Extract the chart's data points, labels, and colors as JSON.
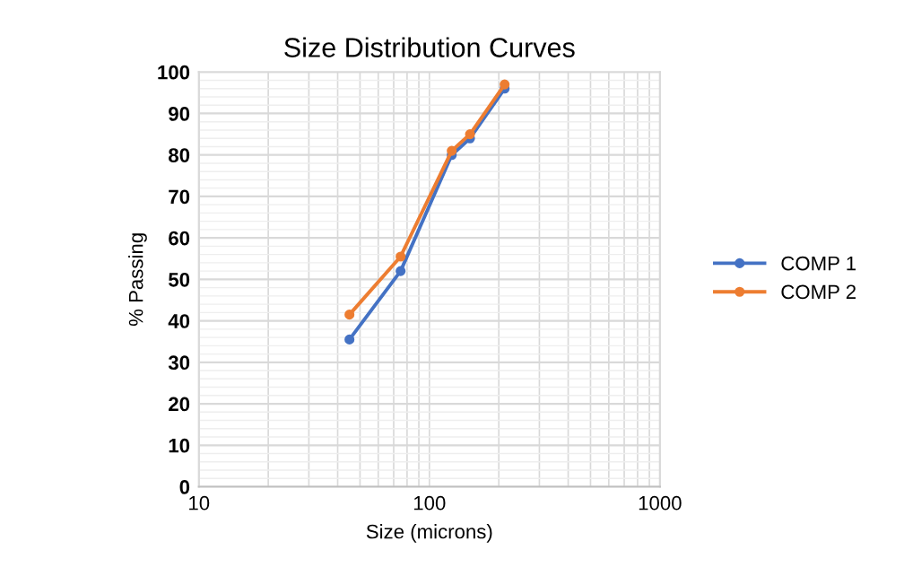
{
  "chart_data": {
    "type": "line",
    "title": "Size Distribution Curves",
    "xlabel": "Size (microns)",
    "ylabel": "% Passing",
    "log": "x",
    "xlim": [
      10,
      1000
    ],
    "xticks": [
      10,
      100,
      1000
    ],
    "ylim": [
      0,
      100
    ],
    "yticks": [
      0,
      10,
      20,
      30,
      40,
      50,
      60,
      70,
      80,
      90,
      100
    ],
    "grid": true,
    "legend": "right",
    "marker": "circle",
    "line_style": "solid",
    "series": [
      {
        "name": "COMP 1",
        "color": "#4472c4",
        "x": [
          45,
          75,
          125,
          150,
          212
        ],
        "values": [
          35.5,
          52,
          80,
          84,
          96
        ]
      },
      {
        "name": "COMP 2",
        "color": "#ed7d31",
        "x": [
          45,
          75,
          125,
          150,
          212
        ],
        "values": [
          41.5,
          55.5,
          81,
          85,
          97
        ]
      }
    ]
  }
}
